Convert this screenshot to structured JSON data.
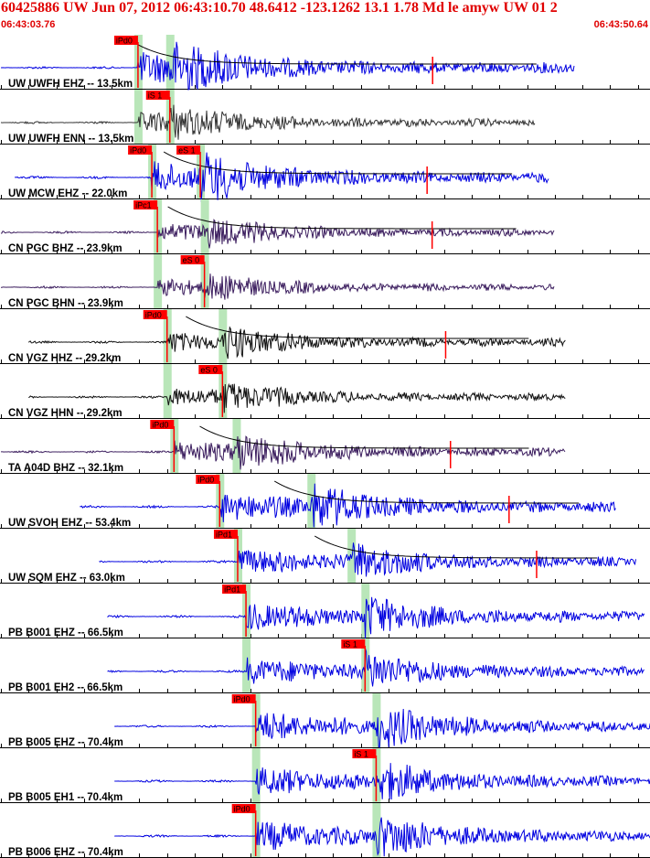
{
  "header": {
    "title": "60425886 UW Jun 07, 2012 06:43:10.70    48.6412 -123.1262 13.1 1.78 Md le amyw UW 01    2",
    "start_time": "06:43:03.76",
    "end_time": "06:43:50.64"
  },
  "colors": {
    "header_red": "#e00000",
    "pick_box": "#ff0000",
    "pick_window": "#b9e6b9",
    "trace_blue": "#0000e0",
    "trace_black": "#111111",
    "trace_gray": "#333333",
    "trace_purple": "#3b1d5e",
    "coda_curve": "#000000",
    "grid": "#000000"
  },
  "chart_data": {
    "type": "line",
    "title": "60425886 UW Jun 07, 2012 06:43:10.70    48.6412 -123.1262 13.1 1.78 Md le amyw UW 01    2",
    "x_units": "seconds after 06:43:03.76",
    "xlim": [
      0,
      46.88
    ],
    "tick_interval_s": 2,
    "traces": [
      {
        "label": "UW UWFH EHZ -- 13.5km",
        "color": "trace_blue",
        "start": 0.0,
        "end": 41.4,
        "p_pick": "iPd0",
        "p_time": 9.9,
        "s_pick": null,
        "s_time": 12.2,
        "amp": 1.0,
        "coda": true
      },
      {
        "label": "UW UWFH ENN -- 13.5km",
        "color": "trace_gray",
        "start": 0.0,
        "end": 38.6,
        "p_pick": null,
        "p_time": 9.9,
        "s_pick": "iS 1",
        "s_time": 12.2,
        "amp": 0.6,
        "coda": false
      },
      {
        "label": "UW MCW EHZ -- 22.0km",
        "color": "trace_blue",
        "start": 1.0,
        "end": 39.6,
        "p_pick": "iPd0",
        "p_time": 10.9,
        "s_pick": "eS 1",
        "s_time": 14.4,
        "amp": 0.9,
        "coda": true
      },
      {
        "label": "CN PGC BHZ -- 23.9km",
        "color": "trace_purple",
        "start": 0.0,
        "end": 40.0,
        "p_pick": "iPc1",
        "p_time": 11.3,
        "s_pick": null,
        "s_time": 14.7,
        "amp": 0.55,
        "coda": true
      },
      {
        "label": "CN PGC BHN -- 23.9km",
        "color": "trace_purple",
        "start": 0.0,
        "end": 40.0,
        "p_pick": null,
        "p_time": 11.3,
        "s_pick": "eS 0",
        "s_time": 14.7,
        "amp": 0.5,
        "coda": false
      },
      {
        "label": "CN VGZ HHZ -- 29.2km",
        "color": "trace_black",
        "start": 2.0,
        "end": 40.8,
        "p_pick": "iPd0",
        "p_time": 12.0,
        "s_pick": null,
        "s_time": 16.0,
        "amp": 0.6,
        "coda": true
      },
      {
        "label": "CN VGZ HHN -- 29.2km",
        "color": "trace_black",
        "start": 2.0,
        "end": 40.8,
        "p_pick": null,
        "p_time": 12.0,
        "s_pick": "eS 0",
        "s_time": 16.0,
        "amp": 0.55,
        "coda": false
      },
      {
        "label": "TA A04D BHZ -- 32.1km",
        "color": "trace_purple",
        "start": 0.0,
        "end": 40.8,
        "p_pick": "iPd0",
        "p_time": 12.5,
        "s_pick": null,
        "s_time": 17.0,
        "amp": 0.7,
        "coda": true
      },
      {
        "label": "UW SVOH EHZ -- 53.4km",
        "color": "trace_blue",
        "start": 5.7,
        "end": 44.4,
        "p_pick": "iPd0",
        "p_time": 15.8,
        "s_pick": null,
        "s_time": 22.4,
        "amp": 0.9,
        "coda": true
      },
      {
        "label": "UW SQM EHZ -- 63.0km",
        "color": "trace_blue",
        "start": 7.1,
        "end": 45.9,
        "p_pick": "iPd1",
        "p_time": 17.1,
        "s_pick": null,
        "s_time": 25.3,
        "amp": 0.8,
        "coda": true
      },
      {
        "label": "PB B001 EHZ -- 66.5km",
        "color": "trace_blue",
        "start": 7.7,
        "end": 46.5,
        "p_pick": "iPd1",
        "p_time": 17.7,
        "s_pick": null,
        "s_time": 26.3,
        "amp": 0.85,
        "coda": false
      },
      {
        "label": "PB B001 EH2 -- 66.5km",
        "color": "trace_blue",
        "start": 7.7,
        "end": 46.5,
        "p_pick": null,
        "p_time": 17.7,
        "s_pick": "iS 1",
        "s_time": 26.3,
        "amp": 0.8,
        "coda": false
      },
      {
        "label": "PB B005 EHZ -- 70.4km",
        "color": "trace_blue",
        "start": 8.2,
        "end": 46.9,
        "p_pick": "iPd0",
        "p_time": 18.4,
        "s_pick": null,
        "s_time": 27.1,
        "amp": 0.9,
        "coda": false
      },
      {
        "label": "PB B005 EH1 -- 70.4km",
        "color": "trace_blue",
        "start": 8.2,
        "end": 46.9,
        "p_pick": null,
        "p_time": 18.4,
        "s_pick": "iS 1",
        "s_time": 27.1,
        "amp": 0.85,
        "coda": false
      },
      {
        "label": "PB B006 EHZ -- 70.4km",
        "color": "trace_blue",
        "start": 8.2,
        "end": 46.9,
        "p_pick": "iPd0",
        "p_time": 18.4,
        "s_pick": null,
        "s_time": 27.1,
        "amp": 0.9,
        "coda": false
      }
    ]
  }
}
